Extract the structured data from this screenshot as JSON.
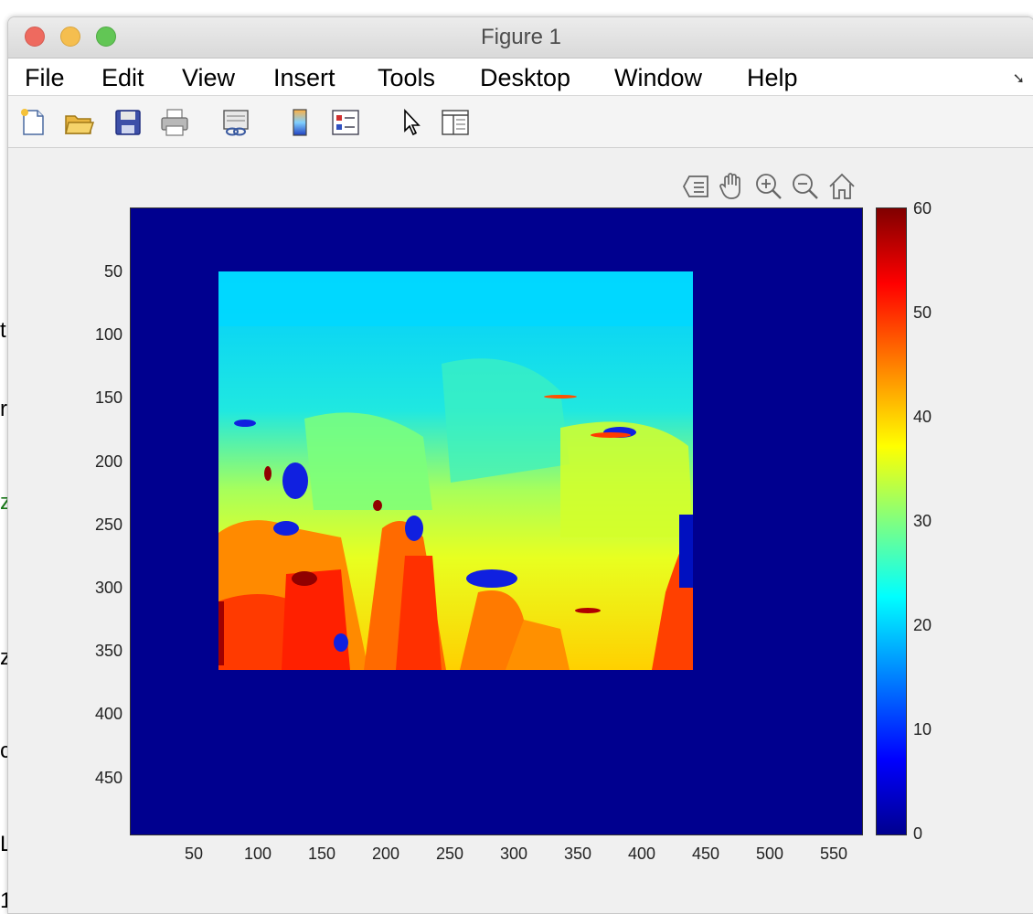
{
  "background_fragments": [
    "t",
    "r",
    "z",
    "z",
    "c",
    "L",
    "1"
  ],
  "window": {
    "title": "Figure 1"
  },
  "menu": {
    "items": [
      "File",
      "Edit",
      "View",
      "Insert",
      "Tools",
      "Desktop",
      "Window",
      "Help"
    ]
  },
  "toolbar": {
    "icons": [
      "new-figure-icon",
      "open-file-icon",
      "save-icon",
      "print-icon",
      "link-plot-icon",
      "insert-colorbar-icon",
      "insert-legend-icon",
      "edit-plot-icon",
      "property-inspector-icon"
    ]
  },
  "plot_tools": {
    "icons": [
      "data-tips-icon",
      "pan-icon",
      "zoom-in-icon",
      "zoom-out-icon",
      "home-icon"
    ]
  },
  "chart_data": {
    "type": "heatmap",
    "title": "",
    "xlabel": "",
    "ylabel": "",
    "x_ticks": [
      "50",
      "100",
      "150",
      "200",
      "250",
      "300",
      "350",
      "400",
      "450",
      "500",
      "550"
    ],
    "y_ticks": [
      "50",
      "100",
      "150",
      "200",
      "250",
      "300",
      "350",
      "400",
      "450"
    ],
    "xlim": [
      0,
      570
    ],
    "ylim": [
      0,
      494
    ],
    "y_direction": "reversed",
    "colormap": "jet",
    "colorbar": {
      "ticks": [
        "60",
        "50",
        "40",
        "30",
        "20",
        "10",
        "0"
      ],
      "range": [
        0,
        60
      ]
    },
    "background_value": 0,
    "disparity_region": {
      "x_range": [
        68,
        440
      ],
      "y_range": [
        50,
        364
      ]
    },
    "colors": {
      "background": "#00008f"
    }
  }
}
